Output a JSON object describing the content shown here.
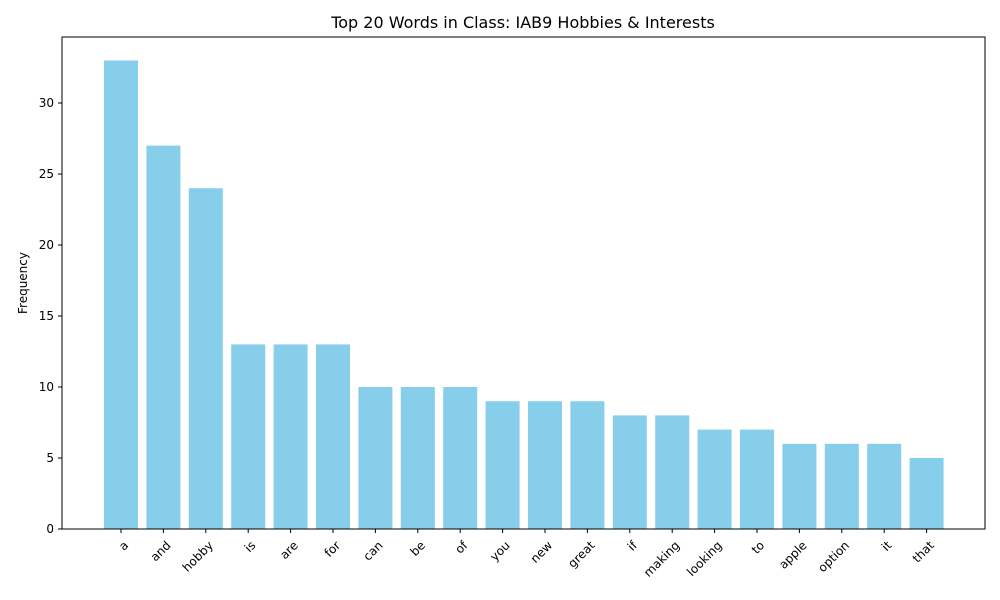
{
  "chart_data": {
    "type": "bar",
    "title": "Top 20 Words in Class: IAB9 Hobbies & Interests",
    "xlabel": "",
    "ylabel": "Frequency",
    "categories": [
      "a",
      "and",
      "hobby",
      "is",
      "are",
      "for",
      "can",
      "be",
      "of",
      "you",
      "new",
      "great",
      "if",
      "making",
      "looking",
      "to",
      "apple",
      "option",
      "it",
      "that"
    ],
    "values": [
      33,
      27,
      24,
      13,
      13,
      13,
      10,
      10,
      10,
      9,
      9,
      9,
      8,
      8,
      7,
      7,
      6,
      6,
      6,
      5
    ],
    "ylim": [
      0,
      34.65
    ],
    "yticks": [
      0,
      5,
      10,
      15,
      20,
      25,
      30
    ],
    "bar_color": "#87ceeb",
    "grid": false,
    "legend": "none"
  }
}
